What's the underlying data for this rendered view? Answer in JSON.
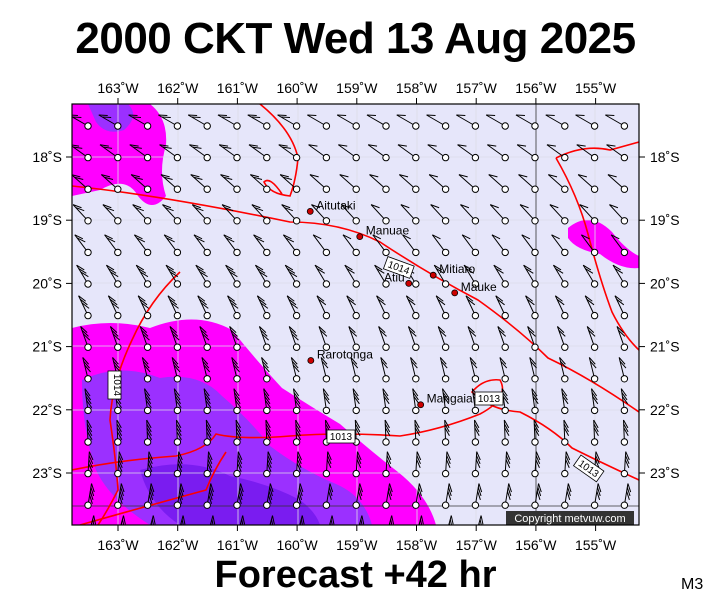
{
  "title": "2000 CKT Wed 13 Aug 2025",
  "footer": "Forecast +42 hr",
  "model_code": "M3",
  "copyright": "Copyright metvuw.com",
  "lon_labels": [
    "163˚W",
    "162˚W",
    "161˚W",
    "160˚W",
    "159˚W",
    "158˚W",
    "157˚W",
    "156˚W",
    "155˚W"
  ],
  "lat_labels": [
    "18˚S",
    "19˚S",
    "20˚S",
    "21˚S",
    "22˚S",
    "23˚S"
  ],
  "places": [
    {
      "name": "Aitutaki",
      "lon": -159.78,
      "lat": -18.86
    },
    {
      "name": "Manuae",
      "lon": -158.95,
      "lat": -19.26
    },
    {
      "name": "Mitiaro",
      "lon": -157.72,
      "lat": -19.87
    },
    {
      "name": "Atiu",
      "lon": -158.13,
      "lat": -20.0
    },
    {
      "name": "Mauke",
      "lon": -157.36,
      "lat": -20.15
    },
    {
      "name": "Rarotonga",
      "lon": -159.77,
      "lat": -21.22
    },
    {
      "name": "Mangaia",
      "lon": -157.93,
      "lat": -21.92
    }
  ],
  "isobar_labels": [
    "1014",
    "1014",
    "1013",
    "1013",
    "1013"
  ],
  "colors": {
    "ocean": "#e6e6fa",
    "rain_light": "#ff00ff",
    "rain_heavy": "#9b30ff",
    "isobar": "#ff0000",
    "place": "#cc0000"
  }
}
